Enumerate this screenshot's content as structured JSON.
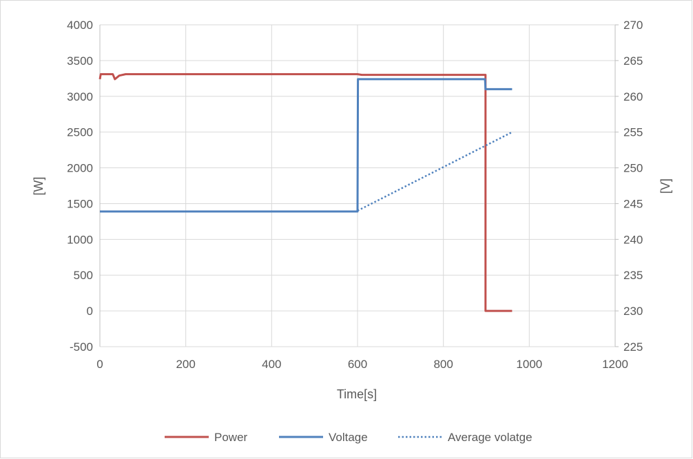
{
  "chart_data": {
    "type": "line",
    "title": "",
    "xlabel": "Time[s]",
    "ylabel": "[W]",
    "y2label": "[V]",
    "xlim": [
      0,
      1200
    ],
    "ylim": [
      -500,
      4000
    ],
    "y2lim": [
      225,
      270
    ],
    "x_ticks": [
      0,
      200,
      400,
      600,
      800,
      1000,
      1200
    ],
    "y_ticks": [
      -500,
      0,
      500,
      1000,
      1500,
      2000,
      2500,
      3000,
      3500,
      4000
    ],
    "y2_ticks": [
      225,
      230,
      235,
      240,
      245,
      250,
      255,
      260,
      265,
      270
    ],
    "grid": true,
    "legend_position": "bottom",
    "series": [
      {
        "name": "Power",
        "axis": "left",
        "style": "solid",
        "color": "#C0504D",
        "points": [
          [
            0,
            3240
          ],
          [
            2,
            3310
          ],
          [
            30,
            3310
          ],
          [
            35,
            3240
          ],
          [
            45,
            3290
          ],
          [
            60,
            3310
          ],
          [
            600,
            3310
          ],
          [
            610,
            3300
          ],
          [
            898,
            3300
          ],
          [
            898,
            0
          ],
          [
            960,
            0
          ]
        ]
      },
      {
        "name": "Voltage",
        "axis": "right",
        "style": "solid",
        "color": "#4F81BD",
        "points": [
          [
            0,
            243.9
          ],
          [
            600,
            243.9
          ],
          [
            601,
            262.4
          ],
          [
            897,
            262.4
          ],
          [
            898,
            261.0
          ],
          [
            960,
            261.0
          ]
        ]
      },
      {
        "name": "Average volatge",
        "axis": "right",
        "style": "dotted",
        "color": "#4F81BD",
        "points": [
          [
            600,
            244.0
          ],
          [
            960,
            255.0
          ]
        ]
      }
    ]
  }
}
